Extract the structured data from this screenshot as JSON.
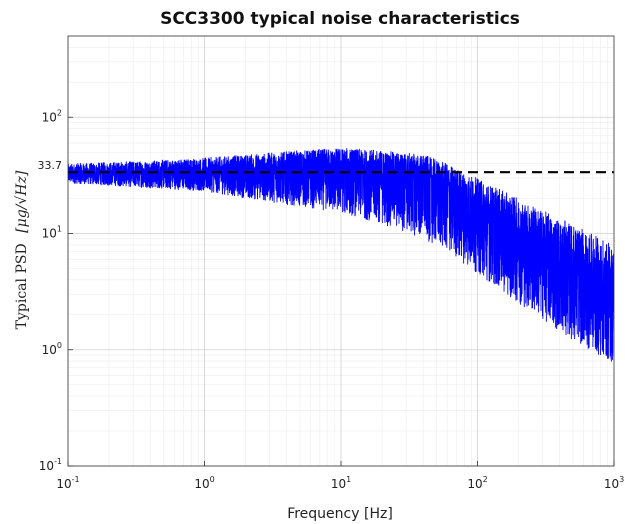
{
  "chart_data": {
    "type": "line",
    "title": "SCC3300 typical noise characteristics",
    "xlabel": "Frequency [Hz]",
    "ylabel_text": "Typical PSD",
    "ylabel_unit": "[μg/√Hz]",
    "xscale": "log",
    "yscale": "log",
    "xlim": [
      0.1,
      1000
    ],
    "ylim": [
      0.1,
      500
    ],
    "grid": true,
    "x_ticks": [
      {
        "base": "10",
        "exp": "-1",
        "value": 0.1
      },
      {
        "base": "10",
        "exp": "0",
        "value": 1
      },
      {
        "base": "10",
        "exp": "1",
        "value": 10
      },
      {
        "base": "10",
        "exp": "2",
        "value": 100
      },
      {
        "base": "10",
        "exp": "3",
        "value": 1000
      }
    ],
    "y_ticks": [
      {
        "base": "10",
        "exp": "-1",
        "value": 0.1
      },
      {
        "base": "10",
        "exp": "0",
        "value": 1
      },
      {
        "base": "10",
        "exp": "1",
        "value": 10
      },
      {
        "base": "10",
        "exp": "2",
        "value": 100
      }
    ],
    "reference_line": {
      "value": 33.7,
      "label": "33.7",
      "style": "dashed",
      "color": "#000000"
    },
    "series": [
      {
        "color": "#0000ff",
        "style": "noisy",
        "envelope": {
          "x": [
            0.1,
            0.3,
            1,
            2,
            5,
            10,
            20,
            40,
            60,
            100,
            200,
            500,
            1000
          ],
          "y_mid": [
            33,
            34,
            35,
            36,
            37,
            38,
            36,
            32,
            26,
            18,
            11,
            5.5,
            3.2
          ],
          "y_upper": [
            40,
            42,
            45,
            48,
            52,
            55,
            52,
            48,
            40,
            30,
            20,
            12,
            8
          ],
          "y_lower": [
            27,
            25,
            23,
            20,
            17,
            15,
            12,
            9,
            7,
            4.5,
            2.5,
            1.2,
            0.75
          ]
        }
      }
    ]
  }
}
